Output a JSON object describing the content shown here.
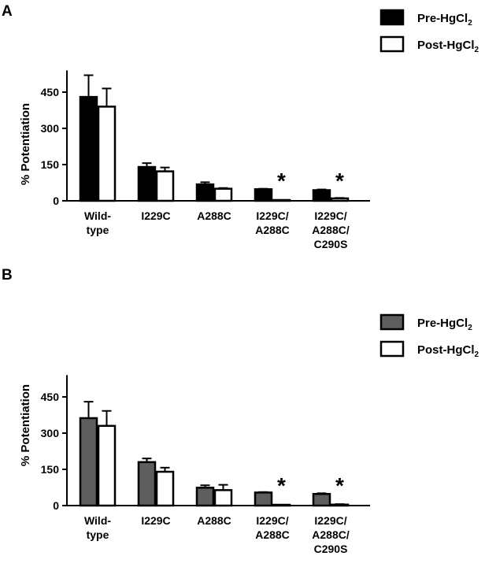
{
  "legend_labels": {
    "pre": [
      "Pre-HgCl",
      "2"
    ],
    "post": [
      "Post-HgCl",
      "2"
    ]
  },
  "colors": {
    "pre_A": "#000000",
    "pre_B": "#5e5e5e",
    "post": "#ffffff",
    "stroke": "#000000"
  },
  "chart_data": [
    {
      "type": "bar",
      "panel": "A",
      "ylabel": "% Potentiation",
      "ylim": [
        0,
        540
      ],
      "yticks": [
        0,
        150,
        300,
        450
      ],
      "categories": [
        [
          "Wild-",
          "type"
        ],
        [
          "I229C"
        ],
        [
          "A288C"
        ],
        [
          "I229C/",
          "A288C"
        ],
        [
          "I229C/",
          "A288C/",
          "C290S"
        ]
      ],
      "series": [
        {
          "name": "Pre-HgCl2",
          "values": [
            430,
            140,
            68,
            48,
            44
          ],
          "errors": [
            90,
            16,
            9,
            2,
            3
          ]
        },
        {
          "name": "Post-HgCl2",
          "values": [
            390,
            122,
            50,
            2,
            10
          ],
          "errors": [
            75,
            16,
            3,
            1,
            2
          ]
        }
      ],
      "annotations": [
        {
          "category_index": 3,
          "text": "*"
        },
        {
          "category_index": 4,
          "text": "*"
        }
      ],
      "legend": "top-right"
    },
    {
      "type": "bar",
      "panel": "B",
      "ylabel": "% Potentiation",
      "ylim": [
        0,
        540
      ],
      "yticks": [
        0,
        150,
        300,
        450
      ],
      "categories": [
        [
          "Wild-",
          "type"
        ],
        [
          "I229C"
        ],
        [
          "A288C"
        ],
        [
          "I229C/",
          "A288C"
        ],
        [
          "I229C/",
          "A288C/",
          "C290S"
        ]
      ],
      "series": [
        {
          "name": "Pre-HgCl2",
          "values": [
            362,
            180,
            74,
            54,
            48
          ],
          "errors": [
            68,
            15,
            10,
            2,
            3
          ]
        },
        {
          "name": "Post-HgCl2",
          "values": [
            330,
            140,
            64,
            2,
            4
          ],
          "errors": [
            62,
            17,
            22,
            1,
            2
          ]
        }
      ],
      "annotations": [
        {
          "category_index": 3,
          "text": "*"
        },
        {
          "category_index": 4,
          "text": "*"
        }
      ],
      "legend": "top-right"
    }
  ]
}
